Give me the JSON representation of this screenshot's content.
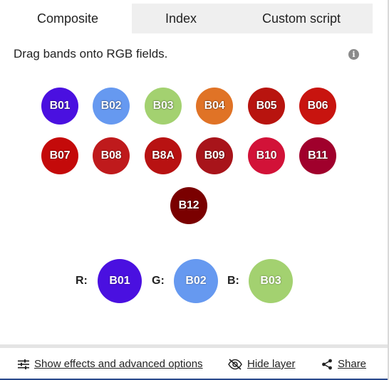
{
  "tabs": [
    {
      "label": "Composite",
      "active": true
    },
    {
      "label": "Index",
      "active": false
    },
    {
      "label": "Custom script",
      "active": false
    }
  ],
  "instructions": "Drag bands onto RGB fields.",
  "info_icon": "info-icon",
  "bands": [
    {
      "label": "B01",
      "color": "#4a10e0"
    },
    {
      "label": "B02",
      "color": "#6699f0"
    },
    {
      "label": "B03",
      "color": "#a3d170"
    },
    {
      "label": "B04",
      "color": "#e07326"
    },
    {
      "label": "B05",
      "color": "#b8140f"
    },
    {
      "label": "B06",
      "color": "#c8140f"
    },
    {
      "label": "B07",
      "color": "#c40a0a"
    },
    {
      "label": "B08",
      "color": "#bf1a1c"
    },
    {
      "label": "B8A",
      "color": "#b81212"
    },
    {
      "label": "B09",
      "color": "#a8141a"
    },
    {
      "label": "B10",
      "color": "#d21238"
    },
    {
      "label": "B11",
      "color": "#a0002c"
    },
    {
      "label": "B12",
      "color": "#7a0000"
    }
  ],
  "rgb": {
    "r": {
      "label": "R:",
      "band": "B01",
      "color": "#4a10e0"
    },
    "g": {
      "label": "G:",
      "band": "B02",
      "color": "#6699f0"
    },
    "b": {
      "label": "B:",
      "band": "B03",
      "color": "#a3d170"
    }
  },
  "footer": {
    "effects_label": "Show effects and advanced options",
    "effects_icon": "sliders-icon",
    "hide_label": "Hide layer",
    "hide_icon": "eye-off-icon",
    "share_label": "Share",
    "share_icon": "share-icon"
  }
}
